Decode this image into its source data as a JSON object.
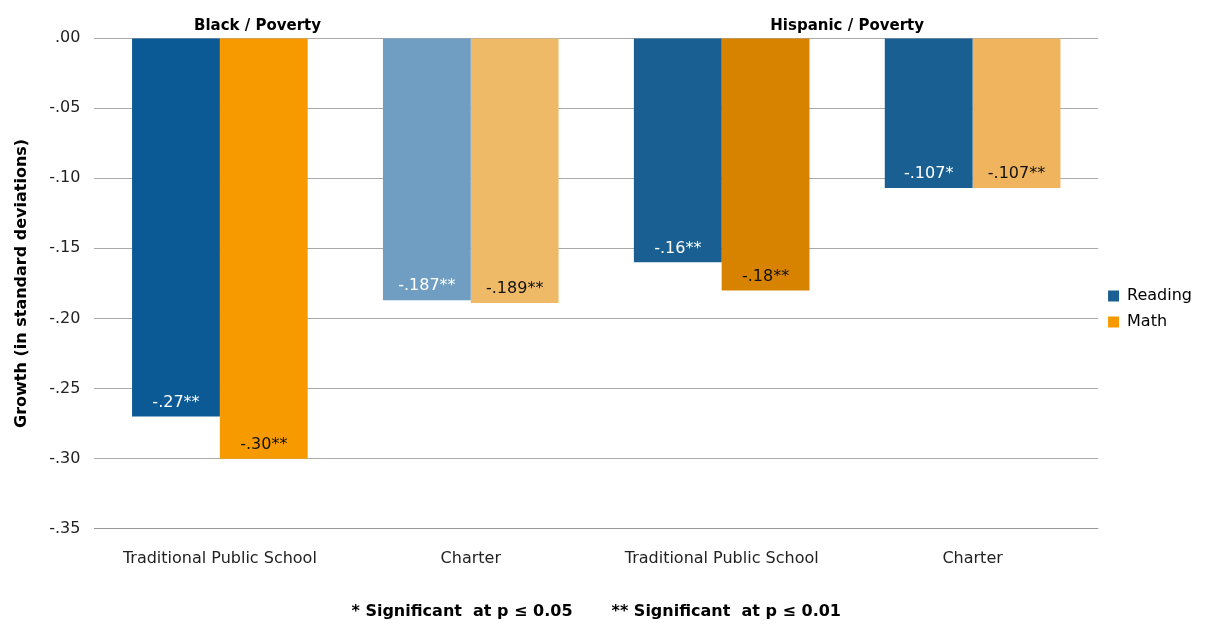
{
  "chart_data": {
    "type": "bar",
    "ylabel": "Growth (in standard deviations)",
    "categories": [
      "Traditional Public School",
      "Charter",
      "Traditional Public School",
      "Charter"
    ],
    "series": [
      {
        "name": "Reading",
        "color": "#1a5f92",
        "colors": [
          "#0b5a96",
          "#6f9ec2",
          "#1a5f92",
          "#1a5f92"
        ],
        "values": [
          -0.27,
          -0.187,
          -0.16,
          -0.107
        ],
        "value_labels": [
          "-.27**",
          "-.187**",
          "-.16**",
          "-.107*"
        ]
      },
      {
        "name": "Math",
        "color": "#f79a00",
        "colors": [
          "#f79a00",
          "#efba68",
          "#d88300",
          "#f0b45e"
        ],
        "values": [
          -0.3,
          -0.189,
          -0.18,
          -0.107
        ],
        "value_labels": [
          "-.30**",
          "-.189**",
          "-.18**",
          "-.107**"
        ]
      }
    ],
    "ylim": [
      -0.35,
      0
    ],
    "yticks": [
      {
        "value": 0,
        "label": ".00"
      },
      {
        "value": -0.05,
        "label": "-.05"
      },
      {
        "value": -0.1,
        "label": "-.10"
      },
      {
        "value": -0.15,
        "label": "-.15"
      },
      {
        "value": -0.2,
        "label": "-.20"
      },
      {
        "value": -0.25,
        "label": "-.25"
      },
      {
        "value": -0.3,
        "label": "-.30"
      },
      {
        "value": -0.35,
        "label": "-.35"
      }
    ],
    "grid": "y",
    "legend": "right",
    "annotations": [
      "Black / Poverty",
      "Hispanic / Poverty",
      "* Significant  at p ≤ 0.05       ** Significant  at p ≤ 0.01"
    ]
  }
}
